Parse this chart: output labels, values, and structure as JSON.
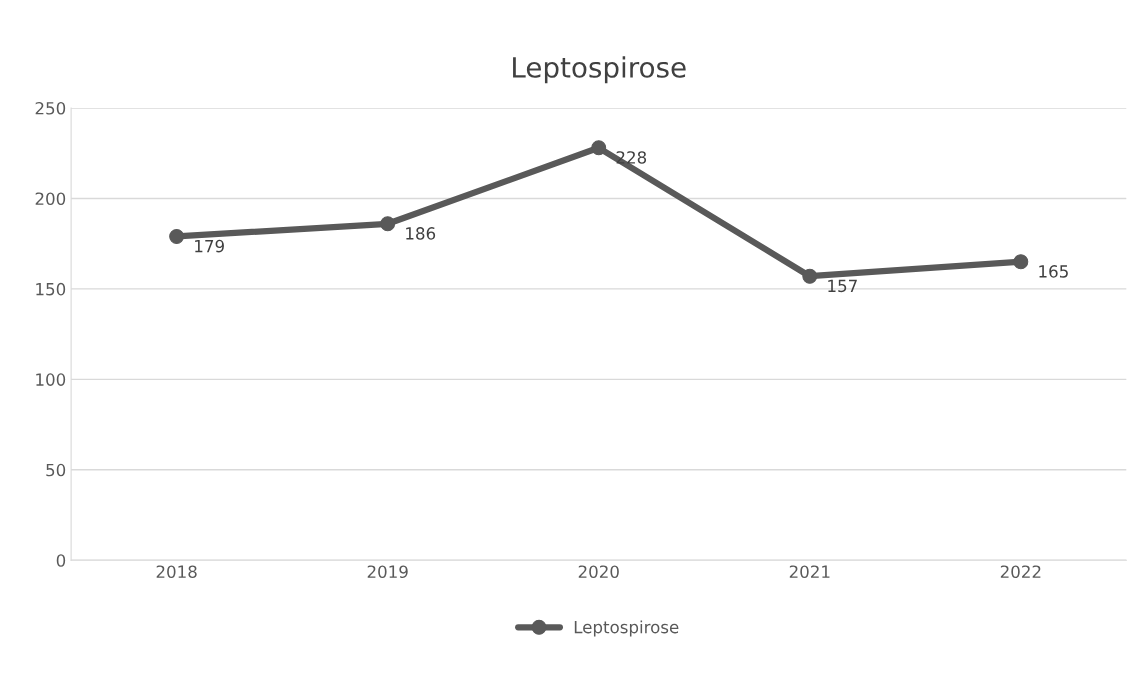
{
  "chart_data": {
    "type": "line",
    "title": "Leptospirose",
    "categories": [
      "2018",
      "2019",
      "2020",
      "2021",
      "2022"
    ],
    "series": [
      {
        "name": "Leptospirose",
        "color": "#595959",
        "values": [
          179,
          186,
          228,
          157,
          165
        ]
      }
    ],
    "ylim": [
      0,
      250
    ],
    "yticks": [
      0,
      50,
      100,
      150,
      200,
      250
    ],
    "grid": "y",
    "legend": "bottom",
    "marker": "circle",
    "line_style": "solid",
    "data_labels": true
  }
}
